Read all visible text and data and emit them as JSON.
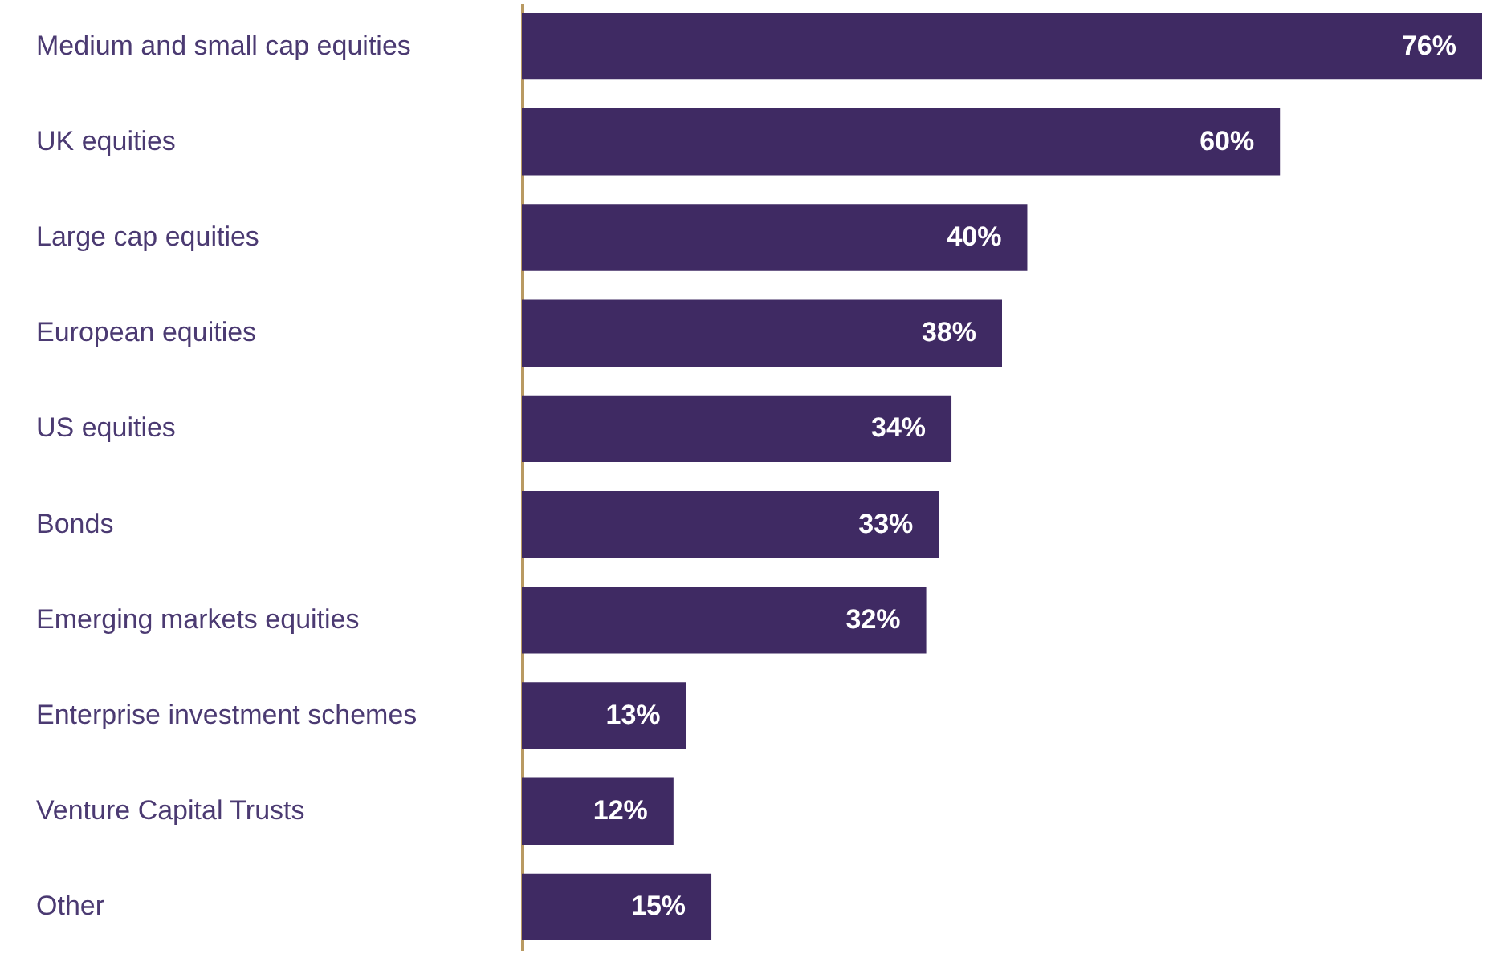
{
  "chart_data": {
    "type": "bar",
    "orientation": "horizontal",
    "categories": [
      "Medium and small cap equities",
      "UK equities",
      "Large cap equities",
      "European equities",
      "US equities",
      "Bonds",
      "Emerging markets equities",
      "Enterprise investment schemes",
      "Venture Capital Trusts",
      "Other"
    ],
    "values": [
      76,
      60,
      40,
      38,
      34,
      33,
      32,
      13,
      12,
      15
    ],
    "value_labels": [
      "76%",
      "60%",
      "40%",
      "38%",
      "34%",
      "33%",
      "32%",
      "13%",
      "12%",
      "15%"
    ],
    "color": "#3f2a63",
    "grid": false
  }
}
